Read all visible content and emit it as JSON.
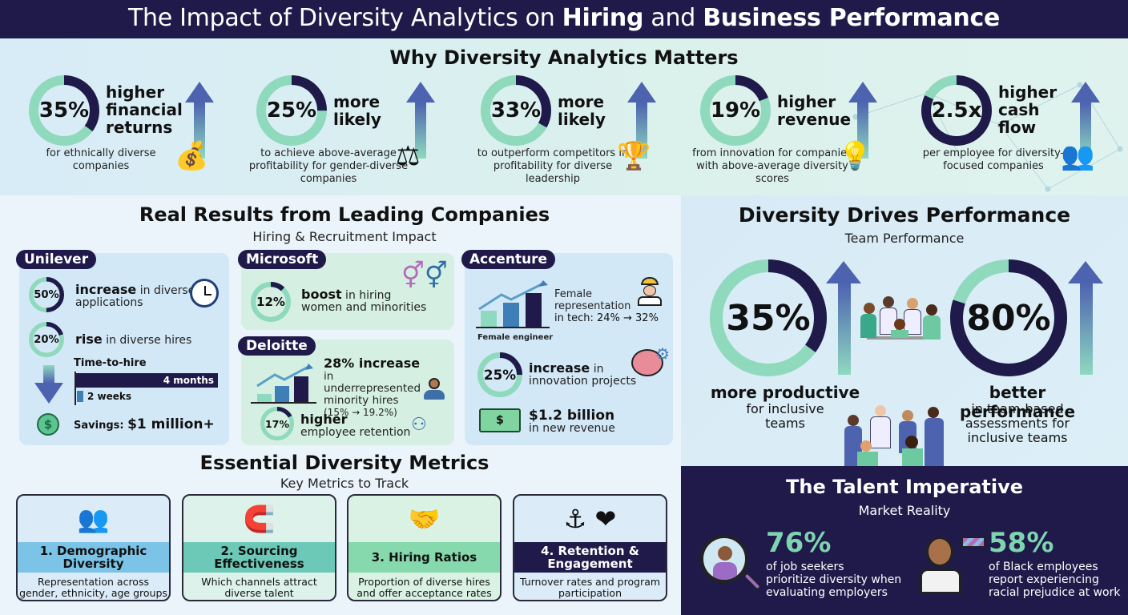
{
  "header": {
    "title_part1": "The Impact of Diversity Analytics on ",
    "title_bold1": "Hiring",
    "title_part2": " and ",
    "title_bold2": "Business Performance"
  },
  "why": {
    "title": "Why Diversity Analytics Matters",
    "stats": [
      {
        "value": "35%",
        "pct": 35,
        "headline": [
          "higher",
          "financial",
          "returns"
        ],
        "desc": "for ethnically diverse companies",
        "icon": "coins-growth-icon"
      },
      {
        "value": "25%",
        "pct": 25,
        "headline": [
          "more",
          "likely"
        ],
        "desc": "to achieve above-average profitability for gender-diverse companies",
        "icon": "balance-scale-icon"
      },
      {
        "value": "33%",
        "pct": 33,
        "headline": [
          "more",
          "likely"
        ],
        "desc": "to outperform competitors in profitability for diverse leadership",
        "icon": "trophy-leader-icon"
      },
      {
        "value": "19%",
        "pct": 19,
        "headline": [
          "higher",
          "revenue"
        ],
        "desc": "from innovation for companies with above-average diversity scores",
        "icon": "lightbulb-dollar-icon"
      },
      {
        "value": "2.5x",
        "pct": 82,
        "headline": [
          "higher",
          "cash",
          "flow"
        ],
        "desc": "per employee for diversity-focused companies",
        "icon": "team-money-icon"
      }
    ]
  },
  "results": {
    "title": "Real Results from Leading Companies",
    "subtitle": "Hiring & Recruitment Impact",
    "unilever": {
      "name": "Unilever",
      "stat1": {
        "value": "50%",
        "pct": 50,
        "bold": "increase",
        "rest": " in diverse applications"
      },
      "stat2": {
        "value": "20%",
        "pct": 20,
        "bold": "rise",
        "rest": " in diverse hires"
      },
      "time_label": "Time-to-hire",
      "before": "4 months",
      "after": "2 weeks",
      "savings_label": "Savings: ",
      "savings_value": "$1 million+"
    },
    "microsoft": {
      "name": "Microsoft",
      "value": "12%",
      "pct": 12,
      "bold": "boost",
      "rest1": " in hiring",
      "rest2": "women and minorities"
    },
    "deloitte": {
      "name": "Deloitte",
      "bold": "28% increase",
      "rest1": " in",
      "lines": [
        "underrepresented",
        "minority hires",
        "(15% → 19.2%)"
      ],
      "value": "17%",
      "pct": 17,
      "ret_bold": "higher",
      "ret_rest": "employee retention"
    },
    "accenture": {
      "name": "Accenture",
      "rep_lines": [
        "Female",
        "representation",
        "in tech: 24% → 32%"
      ],
      "chart_caption": "Female engineer",
      "value": "25%",
      "pct": 25,
      "inn_bold": "increase",
      "inn_rest1": " in",
      "inn_rest2": "innovation projects",
      "rev_bold": "$1.2 billion",
      "rev_rest": "in new revenue"
    }
  },
  "performance": {
    "title": "Diversity Drives Performance",
    "subtitle": "Team Performance",
    "left": {
      "value": "35%",
      "pct": 35,
      "headline": "more productive",
      "desc_lines": [
        "for inclusive",
        "teams"
      ]
    },
    "right": {
      "value": "80%",
      "pct": 80,
      "headline": "better performance",
      "desc_lines": [
        "in team-based",
        "assessments for",
        "inclusive teams"
      ]
    }
  },
  "talent": {
    "title": "The Talent Imperative",
    "subtitle": "Market Reality",
    "stats": [
      {
        "value": "76%",
        "lines": [
          "of job seekers",
          "prioritize diversity when",
          "evaluating employers"
        ]
      },
      {
        "value": "58%",
        "lines": [
          "of Black employees",
          "report experiencing",
          "racial prejudice at work"
        ]
      }
    ]
  },
  "metrics": {
    "title": "Essential Diversity Metrics",
    "subtitle": "Key Metrics to Track",
    "cards": [
      {
        "title": "1. Demographic Diversity",
        "desc": "Representation across gender, ethnicity, age groups",
        "icon": "👥",
        "bg": "#dbecf8",
        "band": "#7cc3e8",
        "fg": "#111"
      },
      {
        "title": "2. Sourcing Effectiveness",
        "desc": "Which channels attract diverse talent",
        "icon": "🧲",
        "bg": "#dcf2ea",
        "band": "#6cc9b8",
        "fg": "#111"
      },
      {
        "title": "3. Hiring Ratios",
        "desc": "Proportion of diverse hires and offer acceptance rates",
        "icon": "🤝",
        "bg": "#d9f2e4",
        "band": "#86d8ad",
        "fg": "#111"
      },
      {
        "title": "4. Retention & Engagement",
        "desc": "Turnover rates and program participation",
        "icon": "⚓ ❤",
        "bg": "#dbecf8",
        "band": "#1f1a4a",
        "fg": "#fff"
      }
    ]
  },
  "colors": {
    "navy": "#1f1a4a",
    "mint": "#7fd4b0",
    "blue": "#3f7fb8",
    "bg": "#eaf4fa"
  }
}
